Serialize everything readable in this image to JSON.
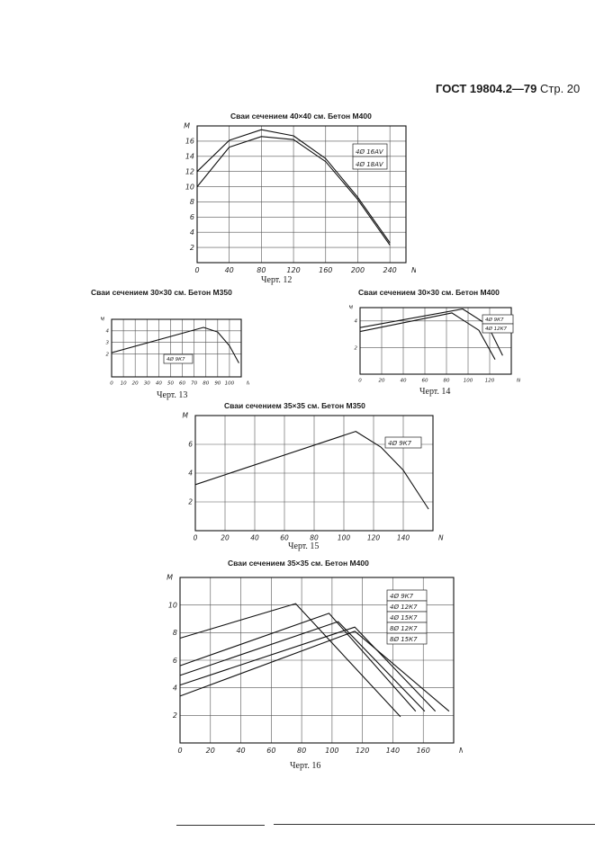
{
  "header": {
    "standard": "ГОСТ 19804.2—79",
    "page_label": "Стр. 20"
  },
  "charts": [
    {
      "title": "Сваи сечением 40×40 см. Бетон М400",
      "caption": "Черт. 12",
      "ylabel": "M",
      "xlabel": "N",
      "xticks": [
        "0",
        "40",
        "80",
        "120",
        "160",
        "200",
        "240"
      ],
      "yticks": [
        "2",
        "4",
        "6",
        "8",
        "10",
        "12",
        "14",
        "16"
      ],
      "legend": [
        "4Ø 16АⅤ",
        "4Ø 18АⅤ"
      ]
    },
    {
      "title": "Сваи сечением 30×30 см. Бетон М350",
      "caption": "Черт. 13",
      "ylabel": "M",
      "xlabel": "N",
      "xticks": [
        "0",
        "10",
        "20",
        "30",
        "40",
        "50",
        "60",
        "70",
        "80",
        "90",
        "100"
      ],
      "yticks": [
        "2",
        "3",
        "4"
      ],
      "legend": [
        "4Ø 9К7"
      ]
    },
    {
      "title": "Сваи сечением 30×30 см. Бетон М400",
      "caption": "Черт. 14",
      "ylabel": "M",
      "xlabel": "N",
      "xticks": [
        "0",
        "20",
        "40",
        "60",
        "80",
        "100",
        "120"
      ],
      "yticks": [
        "2",
        "4"
      ],
      "legend": [
        "4Ø 9К7",
        "4Ø 12К7"
      ]
    },
    {
      "title": "Сваи сечением 35×35 см. Бетон М350",
      "caption": "Черт. 15",
      "ylabel": "M",
      "xlabel": "N",
      "xticks": [
        "0",
        "20",
        "40",
        "60",
        "80",
        "100",
        "120",
        "140"
      ],
      "yticks": [
        "2",
        "4",
        "6"
      ],
      "legend": [
        "4Ø 9К7"
      ]
    },
    {
      "title": "Сваи сечением 35×35 см. Бетон М400",
      "caption": "Черт. 16",
      "ylabel": "M",
      "xlabel": "N",
      "xticks": [
        "0",
        "20",
        "40",
        "60",
        "80",
        "100",
        "120",
        "140",
        "160"
      ],
      "yticks": [
        "2",
        "4",
        "6",
        "8",
        "10"
      ],
      "legend": [
        "4Ø 9К7",
        "4Ø 12К7",
        "4Ø 15К7",
        "8Ø 12К7",
        "8Ø 15К7"
      ]
    }
  ],
  "chart_data": [
    {
      "type": "line",
      "xlim": [
        0,
        260
      ],
      "ylim": [
        0,
        18
      ],
      "grid": true,
      "legend_position": "top-right",
      "series": [
        {
          "name": "4Ø 16АⅤ",
          "x": [
            0,
            40,
            80,
            120,
            160,
            200,
            240
          ],
          "y": [
            10,
            15.2,
            16.6,
            16.2,
            13.3,
            8.3,
            2.3
          ]
        },
        {
          "name": "4Ø 18АⅤ",
          "x": [
            0,
            40,
            80,
            120,
            160,
            200,
            240
          ],
          "y": [
            12,
            16.1,
            17.5,
            16.7,
            13.7,
            8.6,
            2.6
          ]
        }
      ]
    },
    {
      "type": "line",
      "xlim": [
        0,
        110
      ],
      "ylim": [
        0,
        5
      ],
      "grid": true,
      "legend_position": "center",
      "series": [
        {
          "name": "4Ø 9К7",
          "x": [
            0,
            78,
            90,
            100,
            108
          ],
          "y": [
            2.1,
            4.3,
            3.9,
            2.7,
            1.2
          ]
        }
      ]
    },
    {
      "type": "line",
      "xlim": [
        0,
        140
      ],
      "ylim": [
        0,
        5
      ],
      "grid": true,
      "legend_position": "top-right",
      "series": [
        {
          "name": "4Ø 9К7",
          "x": [
            0,
            85,
            110,
            125
          ],
          "y": [
            3.2,
            4.6,
            3.3,
            1.1
          ]
        },
        {
          "name": "4Ø 12К7",
          "x": [
            0,
            95,
            118,
            132
          ],
          "y": [
            3.5,
            4.9,
            3.7,
            1.4
          ]
        }
      ]
    },
    {
      "type": "line",
      "xlim": [
        0,
        160
      ],
      "ylim": [
        0,
        8
      ],
      "grid": true,
      "legend_position": "top-right",
      "series": [
        {
          "name": "4Ø 9К7",
          "x": [
            0,
            108,
            125,
            140,
            157
          ],
          "y": [
            3.2,
            6.9,
            5.8,
            4.2,
            1.5
          ]
        }
      ]
    },
    {
      "type": "line",
      "xlim": [
        0,
        180
      ],
      "ylim": [
        0,
        12
      ],
      "grid": true,
      "legend_position": "top-right",
      "series": [
        {
          "name": "4Ø 9К7",
          "x": [
            0,
            76,
            145
          ],
          "y": [
            7.6,
            10.1,
            1.9
          ]
        },
        {
          "name": "4Ø 12К7",
          "x": [
            0,
            98,
            155
          ],
          "y": [
            5.6,
            9.4,
            2.3
          ]
        },
        {
          "name": "4Ø 15К7",
          "x": [
            0,
            104,
            161
          ],
          "y": [
            4.9,
            8.8,
            2.3
          ]
        },
        {
          "name": "8Ø 12К7",
          "x": [
            0,
            115,
            168
          ],
          "y": [
            4.2,
            8.4,
            2.3
          ]
        },
        {
          "name": "8Ø 15К7",
          "x": [
            0,
            115,
            177
          ],
          "y": [
            3.4,
            8.1,
            2.3
          ]
        }
      ]
    }
  ]
}
